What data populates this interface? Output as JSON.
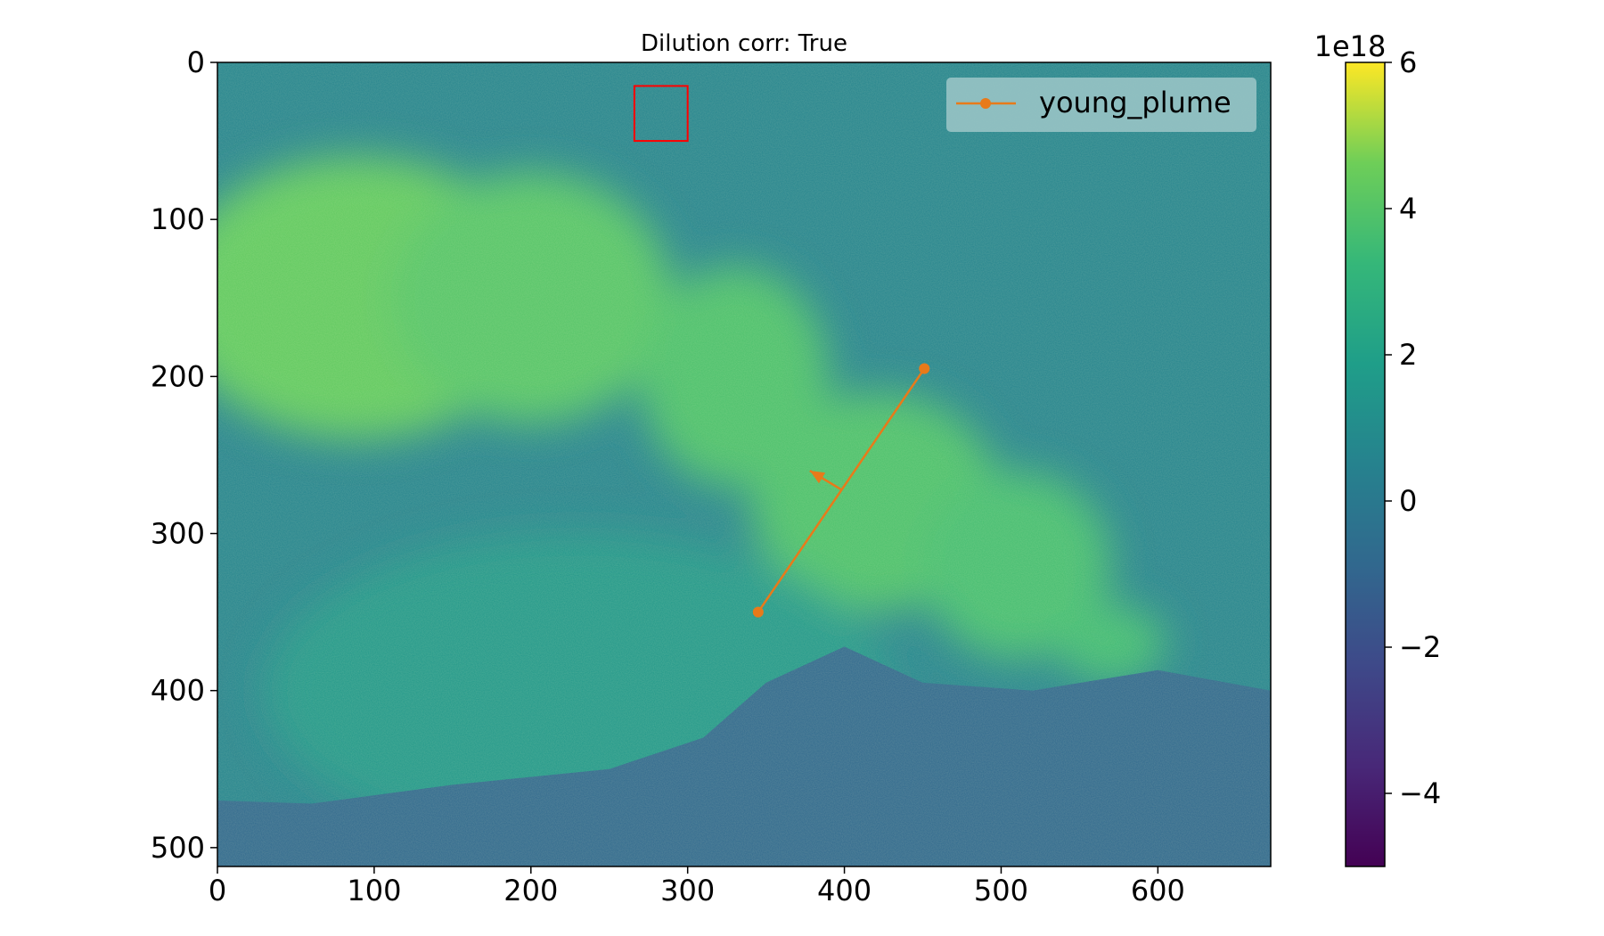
{
  "chart_data": {
    "type": "heatmap",
    "title": "Dilution corr: True",
    "xlabel": "",
    "ylabel": "",
    "image_width": 672,
    "image_height": 512,
    "xlim": [
      0,
      672
    ],
    "ylim": [
      512,
      0
    ],
    "x_ticks": [
      0,
      100,
      200,
      300,
      400,
      500,
      600
    ],
    "y_ticks": [
      0,
      100,
      200,
      300,
      400,
      500
    ],
    "colormap": "viridis",
    "colorbar": {
      "range": [
        -5,
        6
      ],
      "ticks": [
        -4,
        -2,
        0,
        2,
        4,
        6
      ],
      "tick_labels": [
        "−4",
        "−2",
        "0",
        "2",
        "4",
        "6"
      ],
      "scale_label": "1e18"
    },
    "background_level": 0.6,
    "plume_regions": [
      {
        "cx": 90,
        "cy": 150,
        "rx": 120,
        "ry": 90,
        "level": 4.3
      },
      {
        "cx": 200,
        "cy": 150,
        "rx": 90,
        "ry": 80,
        "level": 4.0
      },
      {
        "cx": 330,
        "cy": 200,
        "rx": 60,
        "ry": 70,
        "level": 3.8
      },
      {
        "cx": 420,
        "cy": 280,
        "rx": 80,
        "ry": 70,
        "level": 3.8
      },
      {
        "cx": 510,
        "cy": 320,
        "rx": 60,
        "ry": 60,
        "level": 3.6
      },
      {
        "cx": 570,
        "cy": 370,
        "rx": 35,
        "ry": 25,
        "level": 3.5
      },
      {
        "cx": 230,
        "cy": 400,
        "rx": 200,
        "ry": 100,
        "level": 1.6
      }
    ],
    "ground_level": -0.8,
    "ground_profile": [
      [
        0,
        470
      ],
      [
        60,
        472
      ],
      [
        150,
        460
      ],
      [
        250,
        450
      ],
      [
        310,
        430
      ],
      [
        350,
        395
      ],
      [
        400,
        372
      ],
      [
        450,
        395
      ],
      [
        520,
        400
      ],
      [
        600,
        387
      ],
      [
        672,
        400
      ]
    ],
    "roi_box": {
      "x": [
        266,
        300
      ],
      "y": [
        15,
        50
      ],
      "color": "#ff0000"
    },
    "series": [
      {
        "name": "young_plume",
        "color": "#e87a1a",
        "x": [
          345,
          451
        ],
        "y": [
          350,
          195
        ],
        "marker": "o"
      }
    ],
    "arrow": {
      "from": [
        398,
        272
      ],
      "to": [
        378,
        260
      ],
      "color": "#e87a1a"
    },
    "legend": {
      "position": "top-right"
    },
    "grid": false
  }
}
